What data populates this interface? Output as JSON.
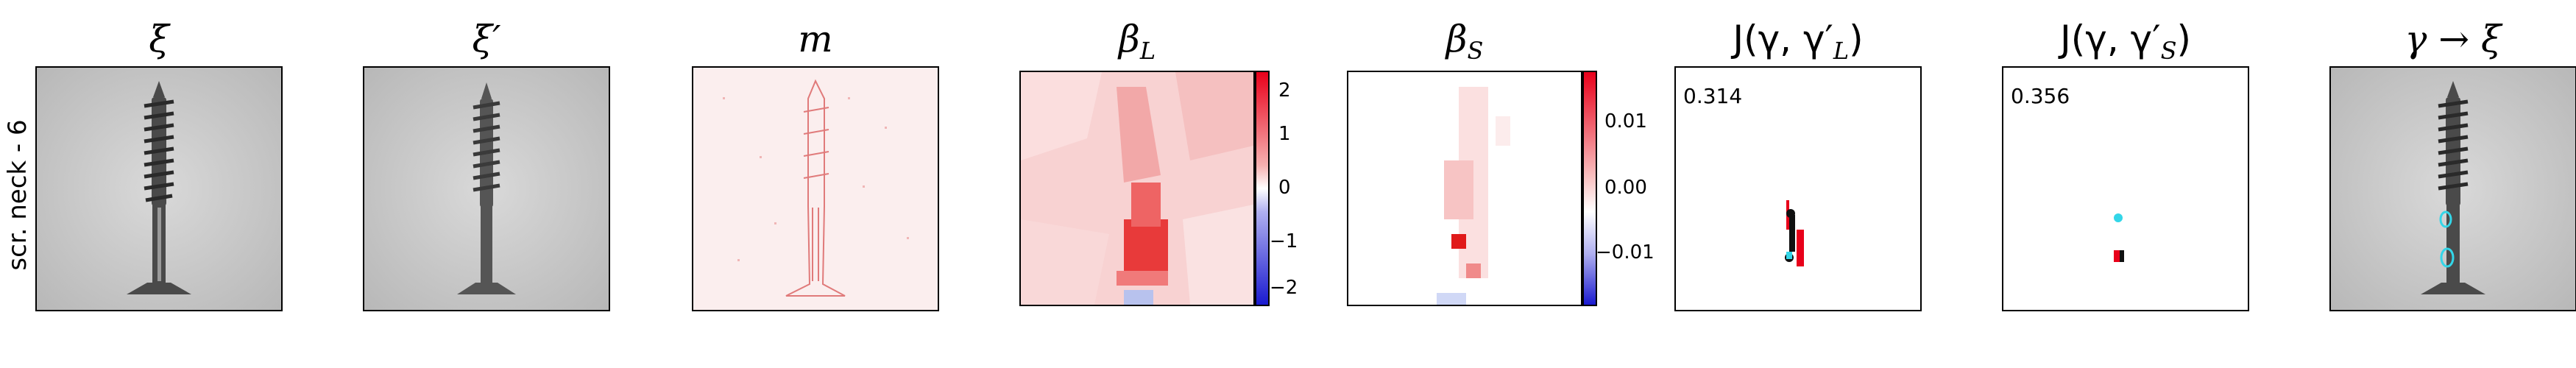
{
  "row_label": "scr. neck - 6",
  "titles": {
    "xi": "ξ",
    "xi_prime": "ξ′",
    "m": "m",
    "beta_L_base": "β",
    "beta_L_sub": "L",
    "beta_S_base": "β",
    "beta_S_sub": "S",
    "jl": "J(γ, γ′",
    "jl_sub": "L",
    "jl_close": ")",
    "js": "J(γ, γ′",
    "js_sub": "S",
    "js_close": ")",
    "gamma": "γ → ξ"
  },
  "scores": {
    "jl": "0.314",
    "js": "0.356"
  },
  "colorbar_L": {
    "ticks": [
      "2",
      "1",
      "0",
      "−1",
      "−2"
    ]
  },
  "colorbar_S": {
    "ticks": [
      "0.01",
      "0.00",
      "−0.01"
    ]
  },
  "colors": {
    "positive": "#e8001a",
    "negative": "#1a1ad0",
    "neutral": "#ffffff",
    "cyan_overlay": "#33d6e8"
  }
}
